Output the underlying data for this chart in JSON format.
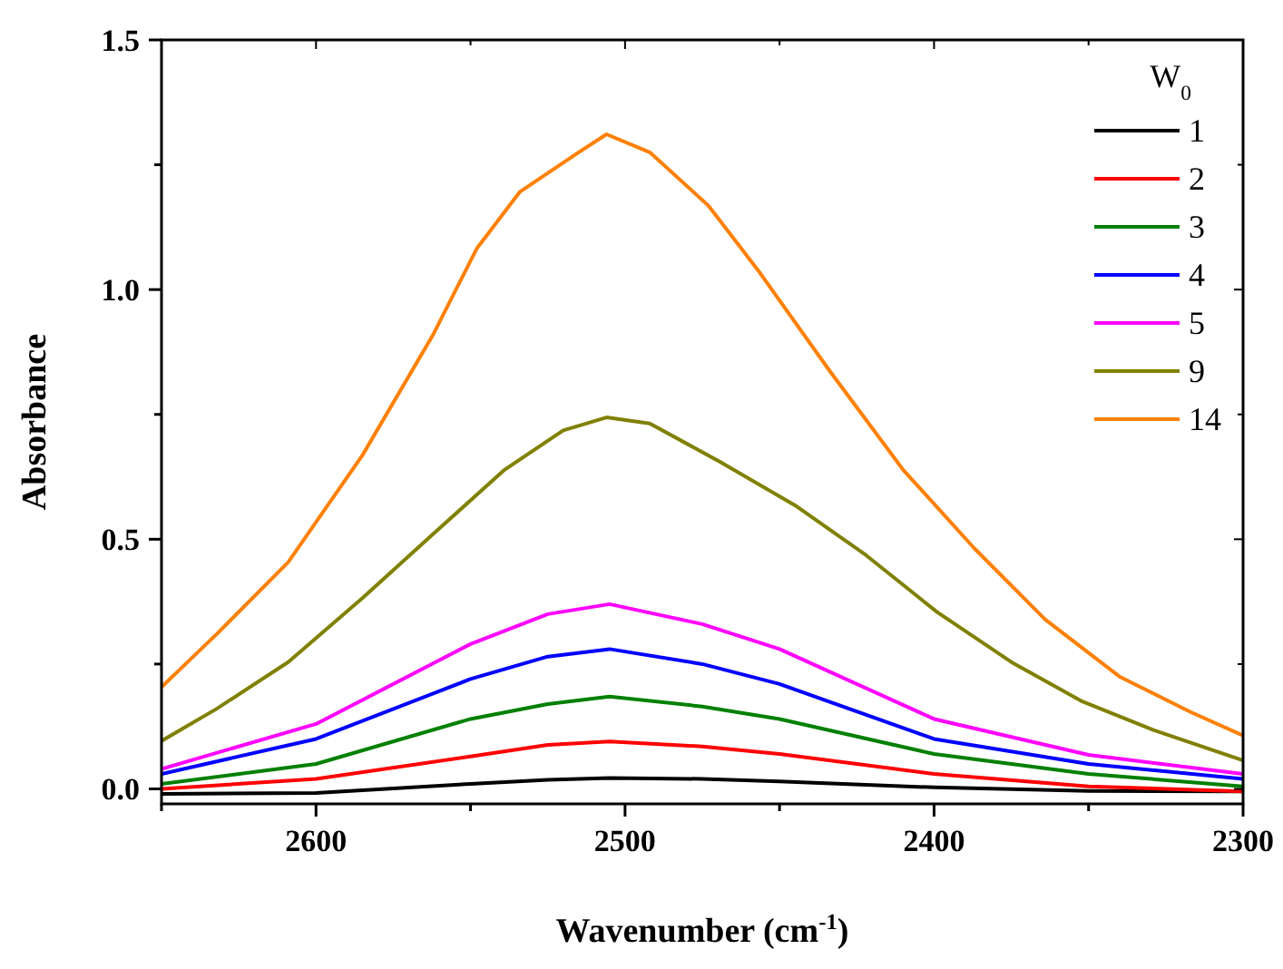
{
  "chart_data": {
    "type": "line",
    "xlabel": "Wavenumber (cm$^{-1}$)",
    "ylabel": "Absorbance",
    "legend_title": "W$_{0}$",
    "legend": "top right",
    "grid": false,
    "xlim": [
      2650,
      2300
    ],
    "xticks": [
      {
        "value": 2650,
        "label": null
      },
      2600,
      {
        "value": 2550,
        "label": null
      },
      2500,
      {
        "value": 2450,
        "label": null
      },
      2400,
      {
        "value": 2350,
        "label": null
      },
      2300
    ],
    "ylim": [
      -0.03,
      1.5
    ],
    "yticks": [
      {
        "value": 0,
        "label": "0.0"
      },
      {
        "value": 0.25,
        "label": null
      },
      {
        "value": 0.5,
        "label": "0.5"
      },
      {
        "value": 0.75,
        "label": null
      },
      {
        "value": 1,
        "label": "1.0"
      },
      {
        "value": 1.25,
        "label": null
      },
      {
        "value": 1.5,
        "label": "1.5"
      }
    ],
    "series": [
      {
        "name": "1",
        "color": "#000000",
        "x": [
          2650,
          2600,
          2550,
          2525,
          2505,
          2475,
          2450,
          2400,
          2350,
          2300
        ],
        "values": [
          -0.01,
          -0.008,
          0.01,
          0.018,
          0.022,
          0.02,
          0.015,
          0.003,
          -0.004,
          -0.005
        ]
      },
      {
        "name": "2",
        "color": "#ff0000",
        "x": [
          2650,
          2600,
          2550,
          2525,
          2505,
          2475,
          2450,
          2400,
          2350,
          2300
        ],
        "values": [
          0.0,
          0.02,
          0.065,
          0.088,
          0.095,
          0.085,
          0.07,
          0.03,
          0.005,
          -0.005
        ]
      },
      {
        "name": "3",
        "color": "#008000",
        "x": [
          2650,
          2600,
          2550,
          2525,
          2505,
          2475,
          2450,
          2400,
          2350,
          2300
        ],
        "values": [
          0.01,
          0.05,
          0.14,
          0.17,
          0.185,
          0.165,
          0.14,
          0.07,
          0.03,
          0.005
        ]
      },
      {
        "name": "4",
        "color": "#0000ff",
        "x": [
          2650,
          2600,
          2550,
          2525,
          2505,
          2475,
          2450,
          2400,
          2350,
          2300
        ],
        "values": [
          0.03,
          0.1,
          0.22,
          0.265,
          0.28,
          0.25,
          0.21,
          0.1,
          0.05,
          0.02
        ]
      },
      {
        "name": "5",
        "color": "#ff00ff",
        "x": [
          2650,
          2600,
          2550,
          2525,
          2505,
          2475,
          2450,
          2400,
          2350,
          2300
        ],
        "values": [
          0.04,
          0.13,
          0.29,
          0.35,
          0.37,
          0.33,
          0.28,
          0.14,
          0.068,
          0.03
        ]
      },
      {
        "name": "9",
        "color": "#808000",
        "x": [
          2650,
          2632,
          2609,
          2585,
          2562,
          2539,
          2520,
          2506,
          2492,
          2469,
          2445,
          2422,
          2399,
          2375,
          2352,
          2329,
          2300
        ],
        "values": [
          0.096,
          0.161,
          0.254,
          0.382,
          0.511,
          0.639,
          0.718,
          0.744,
          0.732,
          0.654,
          0.568,
          0.468,
          0.354,
          0.254,
          0.175,
          0.118,
          0.057
        ]
      },
      {
        "name": "14",
        "color": "#ff8000",
        "x": [
          2650,
          2632,
          2609,
          2585,
          2562,
          2548,
          2534,
          2515,
          2506,
          2492,
          2473,
          2457,
          2434,
          2410,
          2387,
          2364,
          2340,
          2317,
          2300
        ],
        "values": [
          0.204,
          0.311,
          0.454,
          0.668,
          0.911,
          1.082,
          1.196,
          1.275,
          1.311,
          1.275,
          1.168,
          1.039,
          0.839,
          0.639,
          0.482,
          0.339,
          0.225,
          0.154,
          0.107
        ]
      }
    ]
  }
}
